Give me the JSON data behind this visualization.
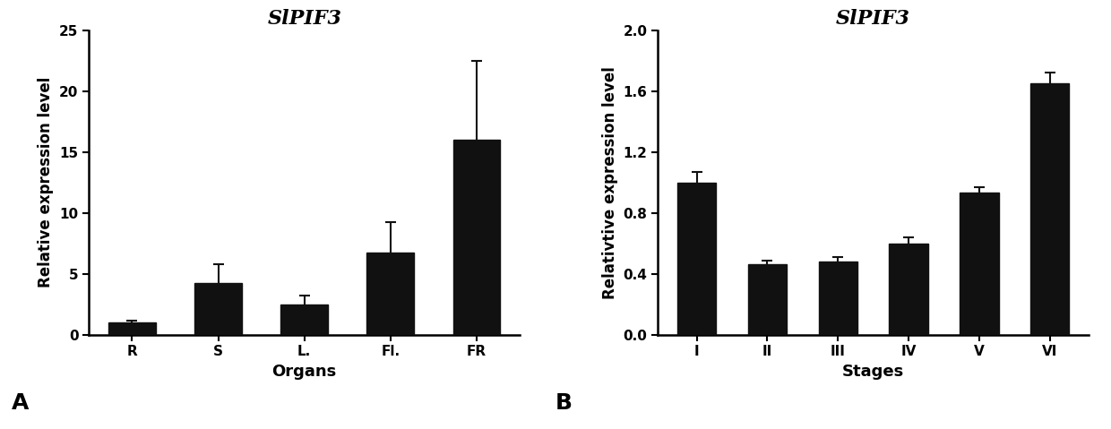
{
  "chart_A": {
    "title": "SlPIF3",
    "categories": [
      "R",
      "S",
      "L.",
      "Fl.",
      "FR"
    ],
    "values": [
      1.0,
      4.2,
      2.5,
      6.7,
      16.0
    ],
    "errors": [
      0.15,
      1.6,
      0.7,
      2.5,
      6.5
    ],
    "xlabel": "Organs",
    "ylabel": "Relative expression level",
    "ylim": [
      0,
      25
    ],
    "yticks": [
      0,
      5,
      10,
      15,
      20,
      25
    ],
    "label": "A"
  },
  "chart_B": {
    "title": "SlPIF3",
    "categories": [
      "I",
      "II",
      "III",
      "IV",
      "V",
      "VI"
    ],
    "values": [
      1.0,
      0.46,
      0.48,
      0.6,
      0.93,
      1.65
    ],
    "errors": [
      0.07,
      0.025,
      0.03,
      0.04,
      0.04,
      0.07
    ],
    "xlabel": "Stages",
    "ylabel": "Relativtive expression level",
    "ylim": [
      0,
      2.0
    ],
    "yticks": [
      0.0,
      0.4,
      0.8,
      1.2,
      1.6,
      2.0
    ],
    "label": "B"
  },
  "bar_color": "#111111",
  "background_color": "#ffffff",
  "title_fontsize": 16,
  "label_fontsize": 12,
  "tick_fontsize": 11,
  "axis_label_fontsize": 13
}
